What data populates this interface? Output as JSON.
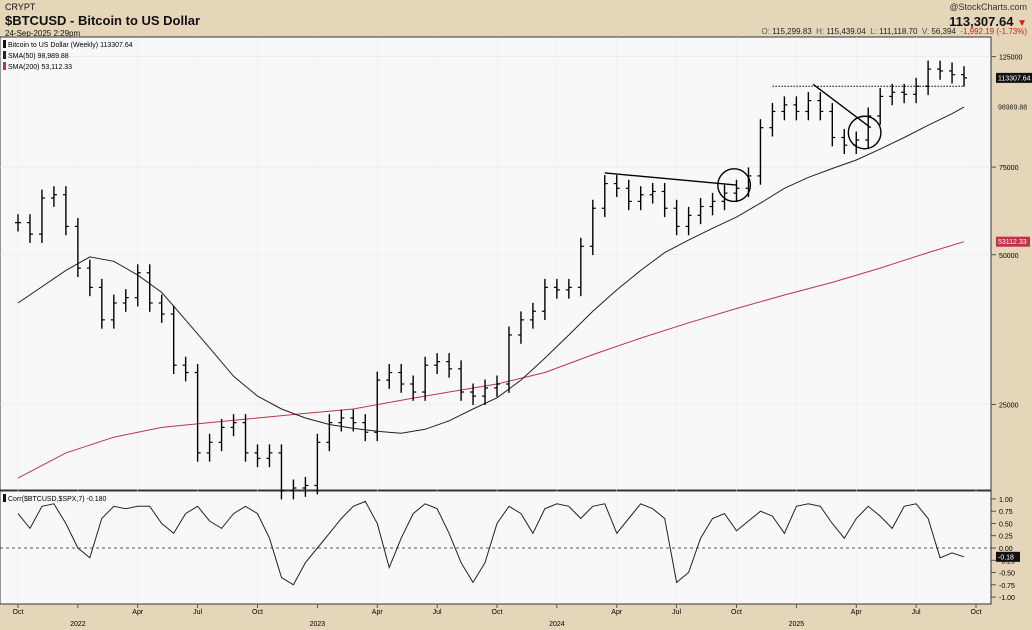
{
  "header": {
    "exchange": "CRYPT",
    "title": "$BTCUSD - Bitcoin to US Dollar",
    "date": "24-Sep-2025 2:29pm",
    "brand": "@StockCharts.com",
    "last": "113,307.64",
    "arrow": "▼",
    "ohlc": {
      "o_label": "O:",
      "o": "115,299.83",
      "h_label": "H:",
      "h": "115,439.04",
      "l_label": "L:",
      "l": "111,118.70",
      "v_label": "V:",
      "v": "56,394",
      "change": "-1,992.19 (-1.73%)"
    }
  },
  "legend": {
    "price": "Bitcoin to US Dollar (Weekly) 113307.64",
    "sma50": "SMA(50) 98,989.88",
    "sma200": "SMA(200) 53,112.33",
    "corr": "Corr($BTCUSD,$SPX,7) -0.180"
  },
  "colors": {
    "background": "#e5d5b9",
    "plot": "#f8f8fa",
    "bars": "#000000",
    "sma50": "#222222",
    "sma200": "#c0324c",
    "down": "#d01c1c"
  },
  "x_axis": {
    "ticks": [
      {
        "label": "Oct",
        "t": 0
      },
      {
        "label": "2022",
        "t": 0.25
      },
      {
        "label": "Apr",
        "t": 0.5
      },
      {
        "label": "Jul",
        "t": 0.75
      },
      {
        "label": "Oct",
        "t": 1.0
      },
      {
        "label": "2023",
        "t": 1.25
      },
      {
        "label": "Apr",
        "t": 1.5
      },
      {
        "label": "Jul",
        "t": 1.75
      },
      {
        "label": "Oct",
        "t": 2.0
      },
      {
        "label": "2024",
        "t": 2.25
      },
      {
        "label": "Apr",
        "t": 2.5
      },
      {
        "label": "Jul",
        "t": 2.75
      },
      {
        "label": "Oct",
        "t": 3.0
      },
      {
        "label": "2025",
        "t": 3.25
      },
      {
        "label": "Apr",
        "t": 3.5
      },
      {
        "label": "Jul",
        "t": 3.75
      },
      {
        "label": "Oct",
        "t": 4.0
      }
    ]
  },
  "price_axis_labels": {
    "sma50_tag": "98989.88",
    "last_tag": "113307.64",
    "sma200_tag": "53112.33",
    "corr_tag": "-0.18"
  },
  "chart_data": {
    "type": "bar",
    "title": "$BTCUSD - Bitcoin to US Dollar",
    "time_unit": "years since Oct 2021",
    "price_scale": "log",
    "price_ylim": [
      17000,
      135000
    ],
    "price_ticks": [
      125000,
      75000,
      50000,
      25000
    ],
    "price_tick_labels": [
      "125000",
      "75000",
      "50000",
      "25000"
    ],
    "price_series": [
      {
        "name": "Bitcoin to US Dollar (Weekly)",
        "points": [
          [
            0.0,
            58000
          ],
          [
            0.05,
            55000
          ],
          [
            0.1,
            65000
          ],
          [
            0.15,
            66000
          ],
          [
            0.2,
            57000
          ],
          [
            0.25,
            47000
          ],
          [
            0.3,
            43000
          ],
          [
            0.35,
            37000
          ],
          [
            0.4,
            40000
          ],
          [
            0.45,
            41000
          ],
          [
            0.5,
            46000
          ],
          [
            0.55,
            40000
          ],
          [
            0.6,
            38000
          ],
          [
            0.65,
            30000
          ],
          [
            0.7,
            29000
          ],
          [
            0.75,
            20000
          ],
          [
            0.8,
            21000
          ],
          [
            0.85,
            22500
          ],
          [
            0.9,
            23000
          ],
          [
            0.95,
            20000
          ],
          [
            1.0,
            19500
          ],
          [
            1.05,
            20000
          ],
          [
            1.1,
            16800
          ],
          [
            1.15,
            17000
          ],
          [
            1.2,
            17200
          ],
          [
            1.25,
            21000
          ],
          [
            1.3,
            23000
          ],
          [
            1.35,
            23500
          ],
          [
            1.4,
            23000
          ],
          [
            1.45,
            22000
          ],
          [
            1.5,
            28000
          ],
          [
            1.55,
            29000
          ],
          [
            1.6,
            27500
          ],
          [
            1.65,
            26500
          ],
          [
            1.7,
            30000
          ],
          [
            1.75,
            30500
          ],
          [
            1.8,
            29500
          ],
          [
            1.85,
            26500
          ],
          [
            1.9,
            26000
          ],
          [
            1.95,
            27000
          ],
          [
            2.0,
            27500
          ],
          [
            2.05,
            34500
          ],
          [
            2.1,
            37000
          ],
          [
            2.15,
            38500
          ],
          [
            2.2,
            43000
          ],
          [
            2.25,
            42500
          ],
          [
            2.3,
            43000
          ],
          [
            2.35,
            52000
          ],
          [
            2.4,
            62000
          ],
          [
            2.45,
            69500
          ],
          [
            2.5,
            68000
          ],
          [
            2.55,
            64000
          ],
          [
            2.6,
            66000
          ],
          [
            2.65,
            67000
          ],
          [
            2.7,
            62000
          ],
          [
            2.75,
            57000
          ],
          [
            2.8,
            60000
          ],
          [
            2.85,
            62500
          ],
          [
            2.9,
            64000
          ],
          [
            2.95,
            66500
          ],
          [
            3.0,
            68000
          ],
          [
            3.05,
            72000
          ],
          [
            3.1,
            90000
          ],
          [
            3.15,
            97000
          ],
          [
            3.2,
            100000
          ],
          [
            3.25,
            97000
          ],
          [
            3.3,
            102000
          ],
          [
            3.35,
            97000
          ],
          [
            3.4,
            86000
          ],
          [
            3.45,
            83000
          ],
          [
            3.5,
            85000
          ],
          [
            3.55,
            95000
          ],
          [
            3.6,
            104000
          ],
          [
            3.65,
            106000
          ],
          [
            3.7,
            105000
          ],
          [
            3.75,
            109000
          ],
          [
            3.8,
            118000
          ],
          [
            3.85,
            117000
          ],
          [
            3.9,
            115000
          ],
          [
            3.95,
            113300
          ]
        ]
      },
      {
        "name": "SMA(50)",
        "points": [
          [
            0.0,
            40000
          ],
          [
            0.2,
            46500
          ],
          [
            0.3,
            49500
          ],
          [
            0.4,
            48500
          ],
          [
            0.5,
            45500
          ],
          [
            0.6,
            42000
          ],
          [
            0.7,
            37000
          ],
          [
            0.8,
            32500
          ],
          [
            0.9,
            28500
          ],
          [
            1.0,
            26000
          ],
          [
            1.1,
            24500
          ],
          [
            1.2,
            23500
          ],
          [
            1.3,
            22800
          ],
          [
            1.4,
            22400
          ],
          [
            1.5,
            22100
          ],
          [
            1.6,
            21900
          ],
          [
            1.7,
            22300
          ],
          [
            1.8,
            23200
          ],
          [
            1.9,
            24500
          ],
          [
            2.0,
            25800
          ],
          [
            2.1,
            28000
          ],
          [
            2.2,
            31000
          ],
          [
            2.3,
            34500
          ],
          [
            2.4,
            38500
          ],
          [
            2.5,
            42500
          ],
          [
            2.6,
            46500
          ],
          [
            2.7,
            50500
          ],
          [
            2.8,
            53500
          ],
          [
            2.9,
            56500
          ],
          [
            3.0,
            59500
          ],
          [
            3.1,
            63500
          ],
          [
            3.2,
            68000
          ],
          [
            3.3,
            71500
          ],
          [
            3.4,
            74500
          ],
          [
            3.5,
            77500
          ],
          [
            3.6,
            81500
          ],
          [
            3.7,
            86000
          ],
          [
            3.8,
            91000
          ],
          [
            3.9,
            96000
          ],
          [
            3.95,
            98990
          ]
        ]
      },
      {
        "name": "SMA(200)",
        "points": [
          [
            0.0,
            17800
          ],
          [
            0.2,
            20000
          ],
          [
            0.4,
            21500
          ],
          [
            0.6,
            22500
          ],
          [
            0.8,
            23000
          ],
          [
            1.0,
            23500
          ],
          [
            1.2,
            24000
          ],
          [
            1.4,
            24500
          ],
          [
            1.6,
            25500
          ],
          [
            1.8,
            26500
          ],
          [
            2.0,
            27500
          ],
          [
            2.2,
            29000
          ],
          [
            2.4,
            31500
          ],
          [
            2.6,
            34000
          ],
          [
            2.8,
            36500
          ],
          [
            3.0,
            39000
          ],
          [
            3.2,
            41500
          ],
          [
            3.4,
            44000
          ],
          [
            3.6,
            47000
          ],
          [
            3.8,
            50500
          ],
          [
            3.95,
            53112
          ]
        ]
      }
    ],
    "corr_series": {
      "name": "Corr($BTCUSD,$SPX,7)",
      "ylim": [
        -1.1,
        1.1
      ],
      "ticks": [
        1.0,
        0.75,
        0.5,
        0.25,
        0.0,
        -0.25,
        -0.5,
        -0.75,
        -1.0
      ],
      "tick_labels": [
        "1.00",
        "0.75",
        "0.50",
        "0.25",
        "0.00",
        "-0.25",
        "-0.50",
        "-0.75",
        "-1.00"
      ],
      "points": [
        [
          0.0,
          0.7
        ],
        [
          0.05,
          0.4
        ],
        [
          0.1,
          0.85
        ],
        [
          0.15,
          0.9
        ],
        [
          0.2,
          0.5
        ],
        [
          0.25,
          0.0
        ],
        [
          0.3,
          -0.2
        ],
        [
          0.35,
          0.6
        ],
        [
          0.4,
          0.85
        ],
        [
          0.45,
          0.8
        ],
        [
          0.5,
          0.85
        ],
        [
          0.55,
          0.85
        ],
        [
          0.6,
          0.5
        ],
        [
          0.65,
          0.3
        ],
        [
          0.7,
          0.7
        ],
        [
          0.75,
          0.85
        ],
        [
          0.8,
          0.55
        ],
        [
          0.85,
          0.4
        ],
        [
          0.9,
          0.7
        ],
        [
          0.95,
          0.85
        ],
        [
          1.0,
          0.7
        ],
        [
          1.05,
          0.2
        ],
        [
          1.1,
          -0.6
        ],
        [
          1.15,
          -0.75
        ],
        [
          1.2,
          -0.3
        ],
        [
          1.25,
          0.0
        ],
        [
          1.3,
          0.3
        ],
        [
          1.35,
          0.6
        ],
        [
          1.4,
          0.85
        ],
        [
          1.45,
          0.95
        ],
        [
          1.5,
          0.5
        ],
        [
          1.55,
          -0.4
        ],
        [
          1.6,
          0.2
        ],
        [
          1.65,
          0.7
        ],
        [
          1.7,
          0.9
        ],
        [
          1.75,
          0.8
        ],
        [
          1.8,
          0.3
        ],
        [
          1.85,
          -0.3
        ],
        [
          1.9,
          -0.7
        ],
        [
          1.95,
          -0.3
        ],
        [
          2.0,
          0.5
        ],
        [
          2.05,
          0.85
        ],
        [
          2.1,
          0.7
        ],
        [
          2.15,
          0.3
        ],
        [
          2.2,
          0.8
        ],
        [
          2.25,
          0.9
        ],
        [
          2.3,
          0.85
        ],
        [
          2.35,
          0.6
        ],
        [
          2.4,
          0.85
        ],
        [
          2.45,
          0.9
        ],
        [
          2.5,
          0.3
        ],
        [
          2.55,
          0.6
        ],
        [
          2.6,
          0.9
        ],
        [
          2.65,
          0.8
        ],
        [
          2.7,
          0.6
        ],
        [
          2.75,
          -0.7
        ],
        [
          2.8,
          -0.5
        ],
        [
          2.85,
          0.2
        ],
        [
          2.9,
          0.6
        ],
        [
          2.95,
          0.7
        ],
        [
          3.0,
          0.35
        ],
        [
          3.05,
          0.55
        ],
        [
          3.1,
          0.75
        ],
        [
          3.15,
          0.65
        ],
        [
          3.2,
          0.3
        ],
        [
          3.25,
          0.85
        ],
        [
          3.3,
          0.9
        ],
        [
          3.35,
          0.85
        ],
        [
          3.4,
          0.5
        ],
        [
          3.45,
          0.2
        ],
        [
          3.5,
          0.6
        ],
        [
          3.55,
          0.85
        ],
        [
          3.6,
          0.65
        ],
        [
          3.65,
          0.4
        ],
        [
          3.7,
          0.85
        ],
        [
          3.75,
          0.9
        ],
        [
          3.8,
          0.6
        ],
        [
          3.85,
          -0.2
        ],
        [
          3.9,
          -0.1
        ],
        [
          3.95,
          -0.18
        ]
      ]
    },
    "annotations": [
      {
        "kind": "trendline",
        "from": [
          2.45,
          73000
        ],
        "to": [
          3.0,
          69000
        ]
      },
      {
        "kind": "trendline",
        "from": [
          3.32,
          110000
        ],
        "to": [
          3.56,
          90000
        ]
      },
      {
        "kind": "dotted_line",
        "from": [
          3.15,
          109000
        ],
        "to": [
          3.95,
          109000
        ]
      },
      {
        "kind": "circle",
        "at": [
          2.99,
          69000
        ]
      },
      {
        "kind": "circle",
        "at": [
          3.535,
          88000
        ]
      }
    ]
  }
}
